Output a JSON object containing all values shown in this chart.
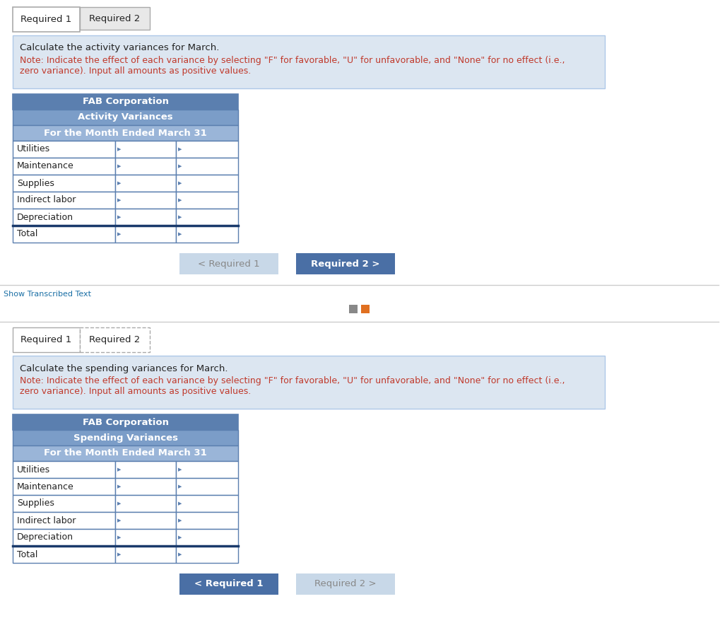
{
  "title_tab1": "Required 1",
  "title_tab2": "Required 2",
  "page_bg": "#ffffff",
  "section1": {
    "instruction_black": "Calculate the activity variances for March.",
    "instruction_red": "Note: Indicate the effect of each variance by selecting \"F\" for favorable, \"U\" for unfavorable, and \"None\" for no effect (i.e.,\nzero variance). Input all amounts as positive values.",
    "table_title1": "FAB Corporation",
    "table_title2": "Activity Variances",
    "table_title3": "For the Month Ended March 31",
    "rows": [
      "Utilities",
      "Maintenance",
      "Supplies",
      "Indirect labor",
      "Depreciation",
      "Total"
    ],
    "btn_left_text": "< Required 1",
    "btn_left_active": false,
    "btn_right_text": "Required 2 >",
    "btn_right_active": true
  },
  "section2": {
    "instruction_black": "Calculate the spending variances for March.",
    "instruction_red": "Note: Indicate the effect of each variance by selecting \"F\" for favorable, \"U\" for unfavorable, and \"None\" for no effect (i.e.,\nzero variance). Input all amounts as positive values.",
    "table_title1": "FAB Corporation",
    "table_title2": "Spending Variances",
    "table_title3": "For the Month Ended March 31",
    "rows": [
      "Utilities",
      "Maintenance",
      "Supplies",
      "Indirect labor",
      "Depreciation",
      "Total"
    ],
    "btn_left_text": "< Required 1",
    "btn_left_active": true,
    "btn_right_text": "Required 2 >",
    "btn_right_active": false
  },
  "colors": {
    "tab_active_bg": "#ffffff",
    "tab_inactive_bg": "#e8e8e8",
    "tab_border": "#aaaaaa",
    "instruction_bg": "#dce6f1",
    "instruction_border": "#aec8e8",
    "red_text": "#c0392b",
    "black_text": "#222222",
    "table_header_bg": "#5b7faf",
    "table_header_text": "#ffffff",
    "table_subheader_bg": "#7b9dc8",
    "table_subheader_text": "#ffffff",
    "table_subheader2_bg": "#9ab5d8",
    "row_bg": "#ffffff",
    "row_border": "#5b7faf",
    "cell_border": "#5b7faf",
    "total_row_border_top": "#1a3a6b",
    "btn_active_bg": "#4a6fa5",
    "btn_active_text": "#ffffff",
    "btn_inactive_bg": "#c8d8e8",
    "btn_inactive_text": "#888888",
    "divider": "#cccccc",
    "show_transcribed": "#1a6fa5",
    "small_icons_bg1": "#888888",
    "small_icons_bg2": "#e07020"
  }
}
